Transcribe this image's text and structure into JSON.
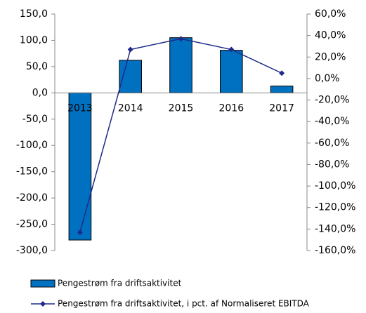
{
  "chart_data": {
    "type": "bar",
    "categories": [
      "2013",
      "2014",
      "2015",
      "2016",
      "2017"
    ],
    "series": [
      {
        "name": "Pengestrøm fra driftsaktivitet",
        "type": "bar",
        "color": "#0070c0",
        "values": [
          -280,
          62,
          105,
          81,
          13
        ]
      },
      {
        "name": "Pengestrøm fra driftsaktivitet, i pct. af Normaliseret EBITDA",
        "type": "line",
        "axis": "y2",
        "color": "#1f2a8a",
        "values": [
          -143,
          27,
          37,
          27,
          5
        ]
      }
    ],
    "ylim": [
      -300,
      150
    ],
    "yticks": [
      {
        "value": -300,
        "label": "-300,0"
      },
      {
        "value": -250,
        "label": "-250,0"
      },
      {
        "value": -200,
        "label": "-200,0"
      },
      {
        "value": -150,
        "label": "-150,0"
      },
      {
        "value": -100,
        "label": "-100,0"
      },
      {
        "value": -50,
        "label": "-50,0"
      },
      {
        "value": 0,
        "label": "0,0"
      },
      {
        "value": 50,
        "label": "50,0"
      },
      {
        "value": 100,
        "label": "100,0"
      },
      {
        "value": 150,
        "label": "150,0"
      }
    ],
    "y2lim": [
      -160,
      60
    ],
    "y2ticks": [
      {
        "value": -160,
        "label": "-160,0%"
      },
      {
        "value": -140,
        "label": "-140,0%"
      },
      {
        "value": -120,
        "label": "-120,0%"
      },
      {
        "value": -100,
        "label": "-100,0%"
      },
      {
        "value": -80,
        "label": "-80,0%"
      },
      {
        "value": -60,
        "label": "-60,0%"
      },
      {
        "value": -40,
        "label": "-40,0%"
      },
      {
        "value": -20,
        "label": "-20,0%"
      },
      {
        "value": 0,
        "label": "0,0%"
      },
      {
        "value": 20,
        "label": "20,0%"
      },
      {
        "value": 40,
        "label": "40,0%"
      },
      {
        "value": 60,
        "label": "60,0%"
      }
    ],
    "legend": "bottom"
  }
}
